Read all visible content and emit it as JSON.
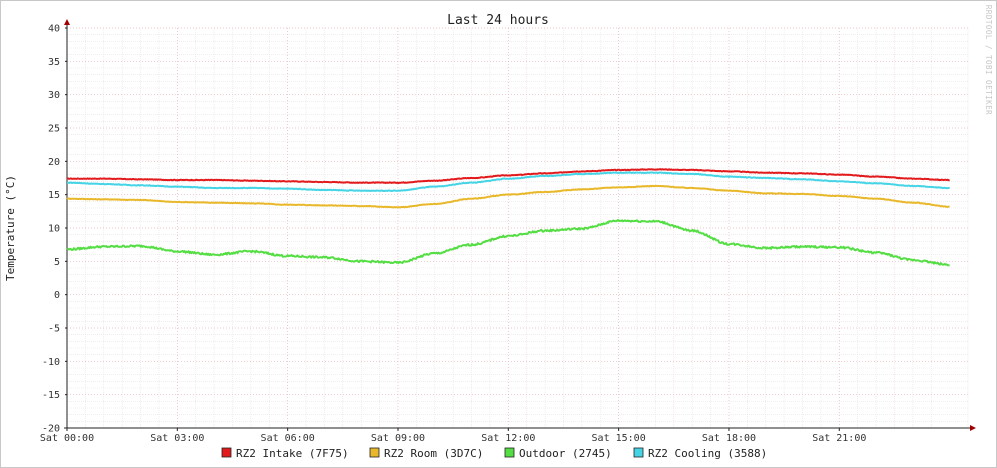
{
  "chart_data": {
    "type": "line",
    "title": "Last 24 hours",
    "ylabel": "Temperature (°C)",
    "xlabel": "",
    "watermark": "RRDTOOL / TOBI OETIKER",
    "ylim": [
      -20,
      40
    ],
    "yticks": [
      40,
      35,
      30,
      25,
      20,
      15,
      10,
      5,
      0,
      -5,
      -10,
      -15,
      -20
    ],
    "xlim": [
      0,
      24.5
    ],
    "xticks": [
      {
        "hour": 0,
        "label": "Sat 00:00"
      },
      {
        "hour": 3,
        "label": "Sat 03:00"
      },
      {
        "hour": 6,
        "label": "Sat 06:00"
      },
      {
        "hour": 9,
        "label": "Sat 09:00"
      },
      {
        "hour": 12,
        "label": "Sat 12:00"
      },
      {
        "hour": 15,
        "label": "Sat 15:00"
      },
      {
        "hour": 18,
        "label": "Sat 18:00"
      },
      {
        "hour": 21,
        "label": "Sat 21:00"
      }
    ],
    "grid": true,
    "legend_position": "bottom",
    "x": [
      0,
      1,
      2,
      3,
      4,
      5,
      6,
      7,
      8,
      9,
      10,
      11,
      12,
      13,
      14,
      15,
      16,
      17,
      18,
      19,
      20,
      21,
      22,
      23,
      24
    ],
    "series": [
      {
        "name": "RZ2 Intake (7F75)",
        "color": "#e31a1c",
        "values": [
          17.4,
          17.4,
          17.3,
          17.2,
          17.2,
          17.1,
          17.0,
          16.9,
          16.8,
          16.8,
          17.1,
          17.5,
          17.9,
          18.2,
          18.5,
          18.7,
          18.8,
          18.7,
          18.5,
          18.3,
          18.2,
          18.0,
          17.7,
          17.4,
          17.2
        ]
      },
      {
        "name": "RZ2 Room (3D7C)",
        "color": "#e8b82a",
        "values": [
          14.4,
          14.3,
          14.2,
          13.9,
          13.8,
          13.7,
          13.5,
          13.4,
          13.3,
          13.1,
          13.6,
          14.4,
          15.0,
          15.4,
          15.8,
          16.1,
          16.3,
          16.0,
          15.6,
          15.2,
          15.1,
          14.8,
          14.4,
          13.8,
          13.2
        ]
      },
      {
        "name": "Outdoor (2745)",
        "color": "#55dd44",
        "values": [
          6.8,
          7.2,
          7.3,
          6.5,
          6.0,
          6.5,
          5.8,
          5.6,
          5.0,
          4.8,
          6.2,
          7.5,
          8.8,
          9.6,
          9.9,
          11.1,
          11.0,
          9.6,
          7.6,
          7.0,
          7.2,
          7.1,
          6.3,
          5.2,
          4.5
        ]
      },
      {
        "name": "RZ2 Cooling (3588)",
        "color": "#44d4e6",
        "values": [
          16.8,
          16.6,
          16.4,
          16.2,
          16.0,
          16.0,
          15.9,
          15.7,
          15.6,
          15.6,
          16.2,
          16.8,
          17.4,
          17.8,
          18.1,
          18.3,
          18.3,
          18.1,
          17.7,
          17.5,
          17.3,
          17.0,
          16.7,
          16.3,
          16.0
        ]
      }
    ]
  }
}
